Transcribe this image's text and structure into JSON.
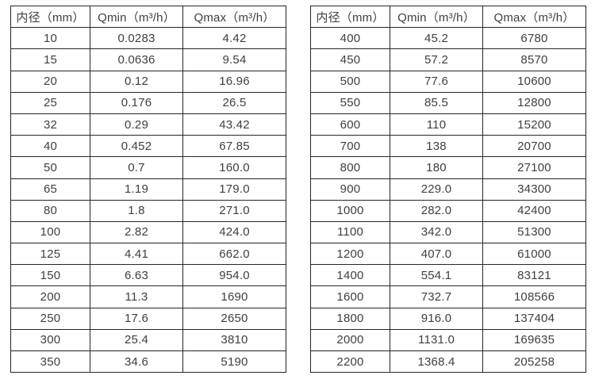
{
  "chart_data": [
    {
      "type": "table",
      "title": "flow-rate-spec-small-diameters",
      "columns": [
        "内径（mm）",
        "Qmin（m³/h）",
        "Qmax（m³/h）"
      ],
      "rows": [
        [
          "10",
          "0.0283",
          "4.42"
        ],
        [
          "15",
          "0.0636",
          "9.54"
        ],
        [
          "20",
          "0.12",
          "16.96"
        ],
        [
          "25",
          "0.176",
          "26.5"
        ],
        [
          "32",
          "0.29",
          "43.42"
        ],
        [
          "40",
          "0.452",
          "67.85"
        ],
        [
          "50",
          "0.7",
          "160.0"
        ],
        [
          "65",
          "1.19",
          "179.0"
        ],
        [
          "80",
          "1.8",
          "271.0"
        ],
        [
          "100",
          "2.82",
          "424.0"
        ],
        [
          "125",
          "4.41",
          "662.0"
        ],
        [
          "150",
          "6.63",
          "954.0"
        ],
        [
          "200",
          "11.3",
          "1690"
        ],
        [
          "250",
          "17.6",
          "2650"
        ],
        [
          "300",
          "25.4",
          "3810"
        ],
        [
          "350",
          "34.6",
          "5190"
        ]
      ]
    },
    {
      "type": "table",
      "title": "flow-rate-spec-large-diameters",
      "columns": [
        "内径（mm）",
        "Qmin（m³/h）",
        "Qmax（m³/h）"
      ],
      "rows": [
        [
          "400",
          "45.2",
          "6780"
        ],
        [
          "450",
          "57.2",
          "8570"
        ],
        [
          "500",
          "77.6",
          "10600"
        ],
        [
          "550",
          "85.5",
          "12800"
        ],
        [
          "600",
          "110",
          "15200"
        ],
        [
          "700",
          "138",
          "20700"
        ],
        [
          "800",
          "180",
          "27100"
        ],
        [
          "900",
          "229.0",
          "34300"
        ],
        [
          "1000",
          "282.0",
          "42400"
        ],
        [
          "1100",
          "342.0",
          "51300"
        ],
        [
          "1200",
          "407.0",
          "61000"
        ],
        [
          "1400",
          "554.1",
          "83121"
        ],
        [
          "1600",
          "732.7",
          "108566"
        ],
        [
          "1800",
          "916.0",
          "137404"
        ],
        [
          "2000",
          "1131.0",
          "169635"
        ],
        [
          "2200",
          "1368.4",
          "205258"
        ]
      ]
    }
  ],
  "colors": {
    "border": "#262626",
    "text": "#3f3f3f",
    "background": "#ffffff"
  }
}
